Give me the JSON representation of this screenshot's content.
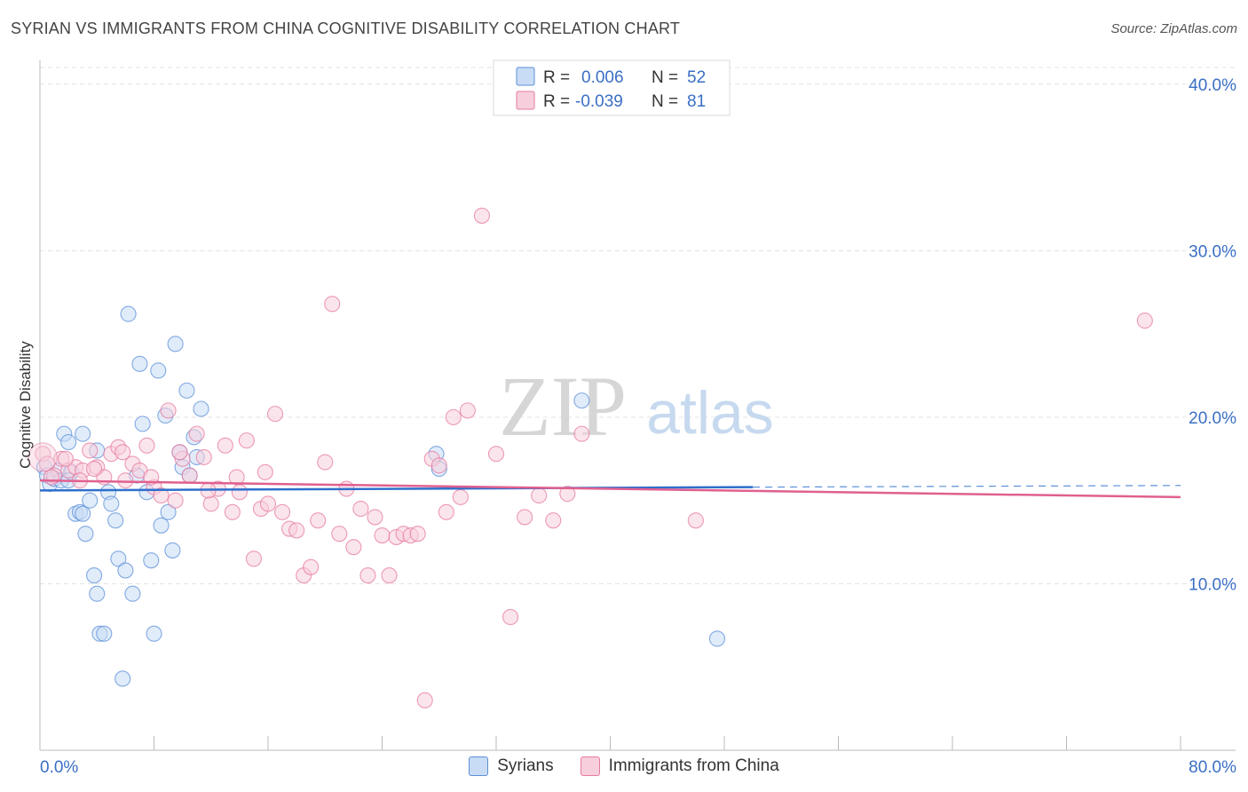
{
  "header": {
    "title": "SYRIAN VS IMMIGRANTS FROM CHINA COGNITIVE DISABILITY CORRELATION CHART",
    "source": "Source: ZipAtlas.com"
  },
  "watermark": {
    "zip": "ZIP",
    "atlas": "atlas"
  },
  "colors": {
    "blue": "#5b8fd8",
    "blue_fill": "#c9dcf5",
    "blue_line": "#2e6fcc",
    "pink": "#e57aa0",
    "pink_fill": "#f7cfdc",
    "pink_line": "#e0608f",
    "axis_label": "#3a6fc4"
  },
  "chart_data": {
    "type": "scatter",
    "title": "SYRIAN VS IMMIGRANTS FROM CHINA COGNITIVE DISABILITY CORRELATION CHART",
    "xlabel": "",
    "ylabel": "Cognitive Disability",
    "xlim": [
      0,
      80
    ],
    "ylim": [
      0,
      41
    ],
    "y_ticks": [
      10,
      20,
      30,
      40
    ],
    "y_tick_labels": [
      "10.0%",
      "20.0%",
      "30.0%",
      "40.0%"
    ],
    "x_tick_labels": [
      "0.0%",
      "80.0%"
    ],
    "grid": true,
    "legend_top": [
      {
        "r_label": "R =",
        "r_value": "0.006",
        "n_label": "N =",
        "n_value": "52"
      },
      {
        "r_label": "R =",
        "r_value": "-0.039",
        "n_label": "N =",
        "n_value": "81"
      }
    ],
    "series": [
      {
        "name": "Syrians",
        "color": "#5b8fd8",
        "trend": {
          "x": [
            0,
            50
          ],
          "y": [
            15.6,
            15.8
          ],
          "dashed_to": 80
        },
        "x": [
          0.3,
          0.5,
          0.7,
          1.0,
          1.3,
          1.5,
          1.7,
          2.0,
          2.2,
          2.5,
          2.8,
          3.0,
          3.2,
          3.5,
          3.8,
          4.0,
          4.2,
          4.5,
          4.8,
          5.0,
          5.3,
          5.5,
          5.8,
          6.0,
          6.2,
          6.5,
          6.8,
          7.0,
          7.2,
          7.5,
          7.8,
          8.0,
          8.3,
          8.5,
          8.8,
          9.0,
          9.3,
          9.5,
          9.8,
          10.0,
          10.3,
          10.5,
          10.8,
          11.0,
          11.3,
          27.8,
          28.0,
          38.0,
          47.5,
          2.0,
          3.0,
          4.0
        ],
        "y": [
          17.0,
          16.5,
          16.0,
          16.3,
          16.8,
          16.2,
          19.0,
          18.5,
          16.7,
          14.2,
          14.3,
          19.0,
          13.0,
          15.0,
          10.5,
          9.4,
          7.0,
          7.0,
          15.5,
          14.8,
          13.8,
          11.5,
          4.3,
          10.8,
          26.2,
          9.4,
          16.5,
          23.2,
          19.6,
          15.5,
          11.4,
          7.0,
          22.8,
          13.5,
          20.1,
          14.3,
          12.0,
          24.4,
          17.9,
          17.0,
          21.6,
          16.5,
          18.8,
          17.6,
          20.5,
          17.8,
          16.9,
          21.0,
          6.7,
          16.2,
          14.2,
          18.0
        ]
      },
      {
        "name": "Immigrants from China",
        "color": "#e57aa0",
        "trend": {
          "x": [
            0,
            80
          ],
          "y": [
            16.2,
            15.2
          ]
        },
        "x": [
          0.2,
          0.5,
          1.0,
          1.5,
          2.0,
          2.5,
          3.0,
          3.5,
          4.0,
          4.5,
          5.0,
          5.5,
          6.0,
          6.5,
          7.0,
          7.5,
          8.0,
          8.5,
          9.0,
          9.5,
          10.0,
          10.5,
          11.0,
          11.5,
          12.0,
          12.5,
          13.0,
          13.5,
          14.0,
          14.5,
          15.0,
          15.5,
          16.0,
          16.5,
          17.0,
          17.5,
          18.0,
          18.5,
          19.0,
          19.5,
          20.0,
          20.5,
          21.0,
          21.5,
          22.0,
          22.5,
          23.0,
          23.5,
          24.0,
          24.5,
          25.0,
          25.5,
          26.0,
          26.5,
          27.0,
          27.5,
          28.0,
          28.5,
          29.0,
          29.5,
          30.0,
          31.0,
          32.0,
          33.0,
          34.0,
          35.0,
          36.0,
          37.0,
          38.0,
          46.0,
          77.5,
          0.8,
          1.8,
          2.8,
          3.8,
          5.8,
          7.8,
          9.8,
          11.8,
          13.8,
          15.8
        ],
        "y": [
          17.8,
          17.2,
          16.5,
          17.5,
          16.8,
          17.0,
          16.8,
          18.0,
          17.0,
          16.4,
          17.8,
          18.2,
          16.2,
          17.2,
          16.8,
          18.3,
          15.8,
          15.3,
          20.4,
          15.0,
          17.5,
          16.5,
          19.0,
          17.6,
          14.8,
          15.7,
          18.3,
          14.3,
          15.5,
          18.6,
          11.5,
          14.5,
          14.8,
          20.2,
          14.3,
          13.3,
          13.2,
          10.5,
          11.0,
          13.8,
          17.3,
          26.8,
          13.0,
          15.7,
          12.2,
          14.5,
          10.5,
          14.0,
          12.9,
          10.5,
          12.8,
          13.0,
          12.9,
          13.0,
          3.0,
          17.5,
          17.1,
          14.3,
          20.0,
          15.2,
          20.4,
          32.1,
          17.8,
          8.0,
          14.0,
          15.3,
          13.8,
          15.4,
          19.0,
          13.8,
          25.8,
          16.4,
          17.5,
          16.2,
          16.9,
          17.9,
          16.4,
          17.9,
          15.6,
          16.4,
          16.7
        ]
      }
    ]
  },
  "legend_bottom": [
    {
      "label": "Syrians",
      "color_key": "blue"
    },
    {
      "label": "Immigrants from China",
      "color_key": "pink"
    }
  ]
}
